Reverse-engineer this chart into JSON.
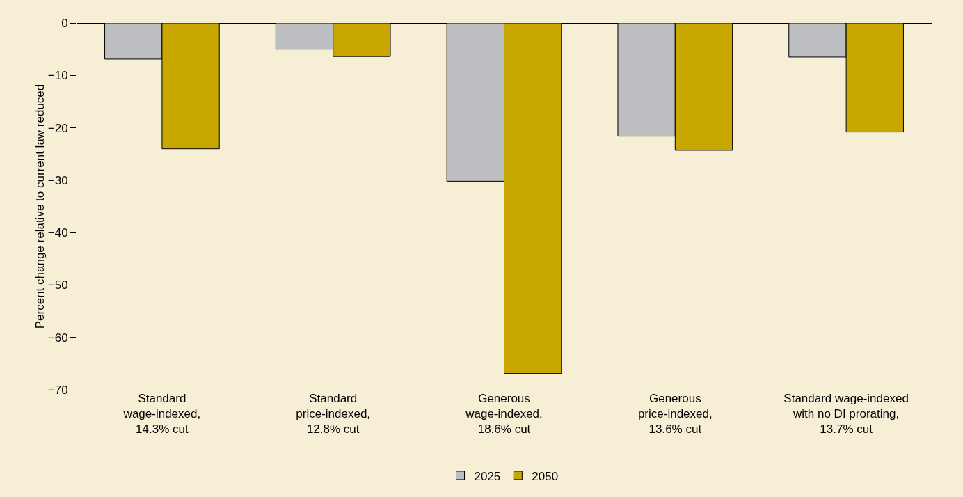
{
  "chart_data": {
    "type": "bar",
    "categories": [
      "Standard\nwage-indexed,\n14.3% cut",
      "Standard\nprice-indexed,\n12.8% cut",
      "Generous\nwage-indexed,\n18.6% cut",
      "Generous\nprice-indexed,\n13.6% cut",
      "Standard wage-indexed\nwith no DI prorating,\n13.7% cut"
    ],
    "series": [
      {
        "name": "2025",
        "color": "#bdbec2",
        "values": [
          -6.9,
          -5.0,
          -30.2,
          -21.6,
          -6.5
        ]
      },
      {
        "name": "2050",
        "color": "#c8a800",
        "values": [
          -24.0,
          -6.4,
          -66.9,
          -24.3,
          -20.8
        ]
      }
    ],
    "ylabel": "Percent change relative to current law reduced",
    "ylim": [
      -70,
      0
    ],
    "yticks": [
      {
        "value": -70,
        "label": "−70"
      },
      {
        "value": -60,
        "label": "−60"
      },
      {
        "value": -50,
        "label": "−50"
      },
      {
        "value": -40,
        "label": "−40"
      },
      {
        "value": -30,
        "label": "−30"
      },
      {
        "value": -20,
        "label": "−20"
      },
      {
        "value": -10,
        "label": "−10"
      },
      0
    ],
    "grid": false,
    "legend": "bottom"
  }
}
